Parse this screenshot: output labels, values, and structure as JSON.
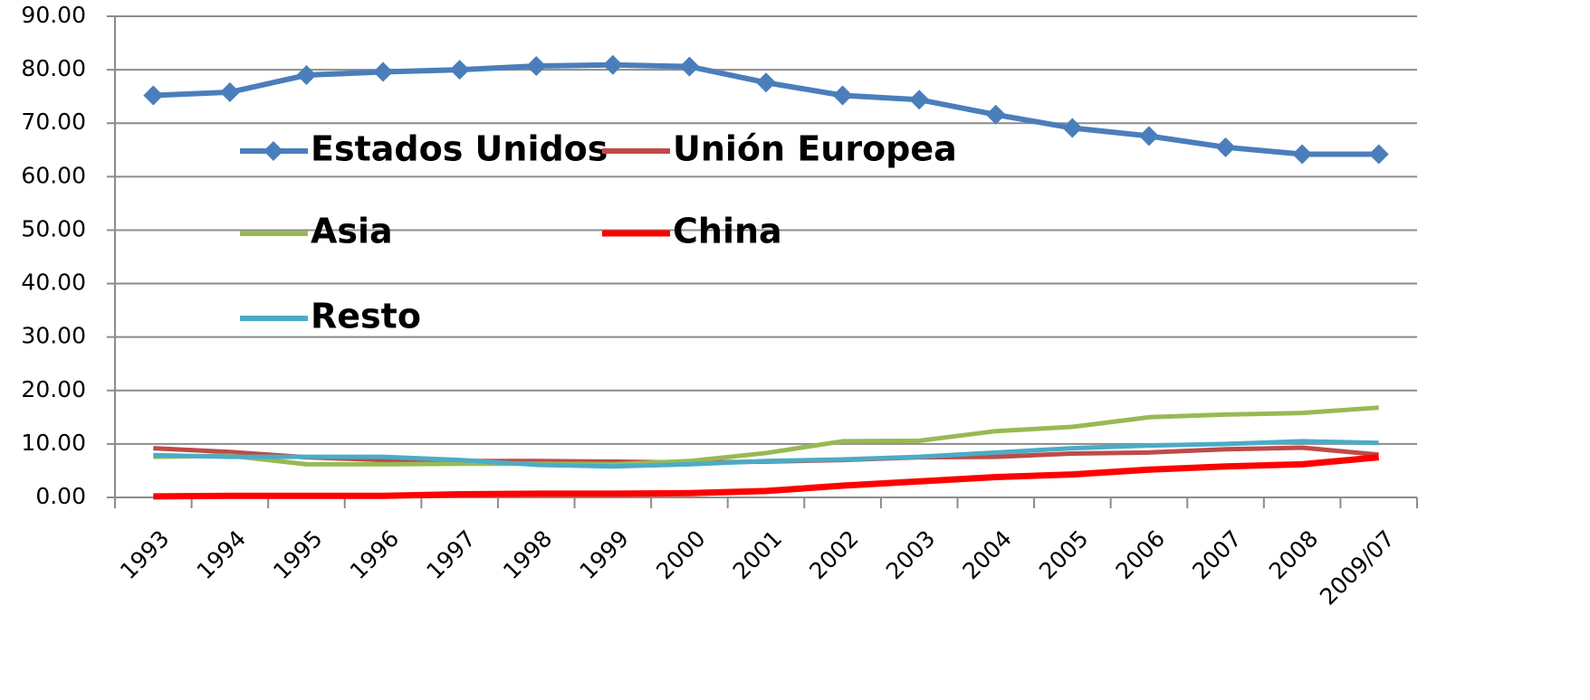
{
  "chart_data": {
    "type": "line",
    "categories": [
      "1993",
      "1994",
      "1995",
      "1996",
      "1997",
      "1998",
      "1999",
      "2000",
      "2001",
      "2002",
      "2003",
      "2004",
      "2005",
      "2006",
      "2007",
      "2008",
      "2009/07"
    ],
    "series": [
      {
        "name": "Estados Unidos",
        "color": "#4a7ebb",
        "marker": "diamond",
        "values": [
          75.2,
          75.8,
          79.0,
          79.6,
          80.0,
          80.7,
          80.9,
          80.6,
          77.6,
          75.2,
          74.4,
          71.6,
          69.1,
          67.6,
          65.5,
          64.2,
          64.2
        ]
      },
      {
        "name": "Unión Europea",
        "color": "#be4b48",
        "values": [
          9.2,
          8.5,
          7.5,
          7.0,
          6.8,
          6.8,
          6.7,
          6.5,
          6.7,
          7.0,
          7.5,
          7.6,
          8.2,
          8.4,
          9.0,
          9.3,
          8.0
        ]
      },
      {
        "name": "Asia",
        "color": "#98b954",
        "values": [
          7.6,
          7.8,
          6.2,
          6.2,
          6.3,
          6.3,
          6.2,
          6.8,
          8.3,
          10.5,
          10.6,
          12.4,
          13.2,
          15.0,
          15.5,
          15.8,
          16.8
        ]
      },
      {
        "name": "China",
        "color": "#ff0000",
        "values": [
          0.2,
          0.3,
          0.3,
          0.3,
          0.6,
          0.7,
          0.7,
          0.8,
          1.2,
          2.2,
          3.0,
          3.8,
          4.3,
          5.2,
          5.8,
          6.2,
          7.5
        ]
      },
      {
        "name": "Resto",
        "color": "#4bacc6",
        "values": [
          7.9,
          7.6,
          7.6,
          7.6,
          7.0,
          6.1,
          5.8,
          6.2,
          6.8,
          7.1,
          7.6,
          8.4,
          9.2,
          9.7,
          10.0,
          10.5,
          10.2
        ]
      }
    ],
    "ylim": [
      0,
      90
    ],
    "yticks": [
      {
        "value": 0,
        "label": "0.00"
      },
      {
        "value": 10,
        "label": "10.00"
      },
      {
        "value": 20,
        "label": "20.00"
      },
      {
        "value": 30,
        "label": "30.00"
      },
      {
        "value": 40,
        "label": "40.00"
      },
      {
        "value": 50,
        "label": "50.00"
      },
      {
        "value": 60,
        "label": "60.00"
      },
      {
        "value": 70,
        "label": "70.00"
      },
      {
        "value": 80,
        "label": "80.00"
      },
      {
        "value": 90,
        "label": "90.00"
      }
    ],
    "grid": true,
    "legend": "inside"
  }
}
